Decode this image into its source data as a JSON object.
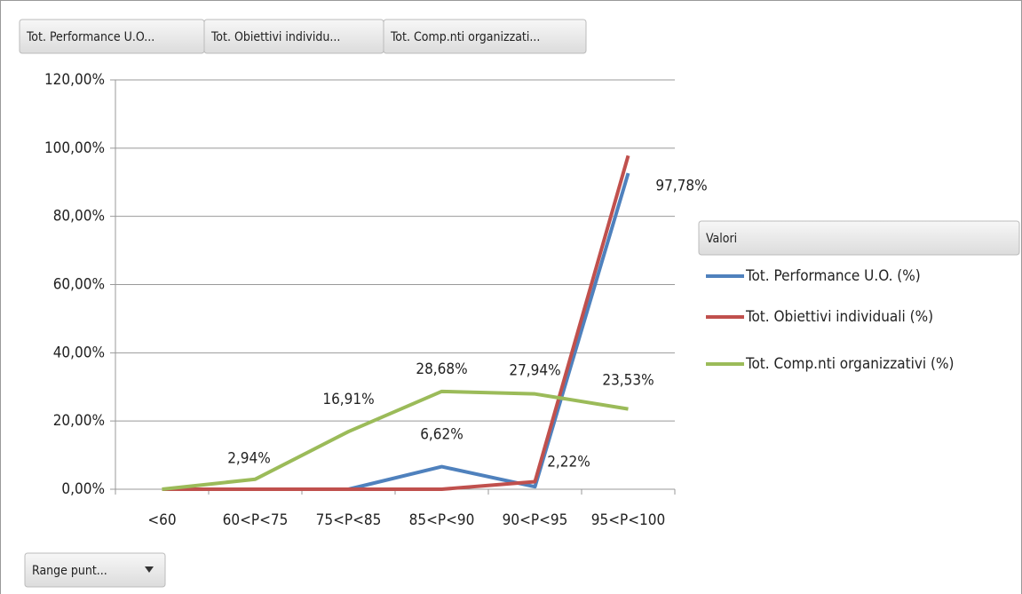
{
  "chart_data": {
    "type": "line",
    "field_buttons": [
      "Tot. Performance U.O...",
      "Tot. Obiettivi individu...",
      "Tot. Comp.nti organizzati..."
    ],
    "legend_title": "Valori",
    "axis_button": "Range punt...",
    "categories": [
      "<60",
      "60<P<75",
      "75<P<85",
      "85<P<90",
      "90<P<95",
      "95<P<100"
    ],
    "series": [
      {
        "name": "Tot. Performance U.O. (%)",
        "color": "#4f81bd",
        "values": [
          0,
          0,
          0,
          6.62,
          0.74,
          92.65
        ],
        "value_labels": [
          null,
          null,
          null,
          "6,62%",
          null,
          null
        ]
      },
      {
        "name": "Tot. Obiettivi individuali (%)",
        "color": "#c0504d",
        "values": [
          0,
          0,
          0,
          0,
          2.22,
          97.78
        ],
        "value_labels": [
          null,
          null,
          null,
          null,
          "2,22%",
          "97,78%"
        ]
      },
      {
        "name": "Tot. Comp.nti organizzativi (%)",
        "color": "#9bbb59",
        "values": [
          0,
          2.94,
          16.91,
          28.68,
          27.94,
          23.53
        ],
        "value_labels": [
          null,
          "2,94%",
          "16,91%",
          "28,68%",
          "27,94%",
          "23,53%"
        ]
      }
    ],
    "ylim": [
      0,
      120
    ],
    "yticks": [
      {
        "value": 0,
        "label": "0,00%"
      },
      {
        "value": 20,
        "label": "20,00%"
      },
      {
        "value": 40,
        "label": "40,00%"
      },
      {
        "value": 60,
        "label": "60,00%"
      },
      {
        "value": 80,
        "label": "80,00%"
      },
      {
        "value": 100,
        "label": "100,00%"
      },
      {
        "value": 120,
        "label": "120,00%"
      }
    ],
    "grid": true,
    "legend": "right"
  }
}
